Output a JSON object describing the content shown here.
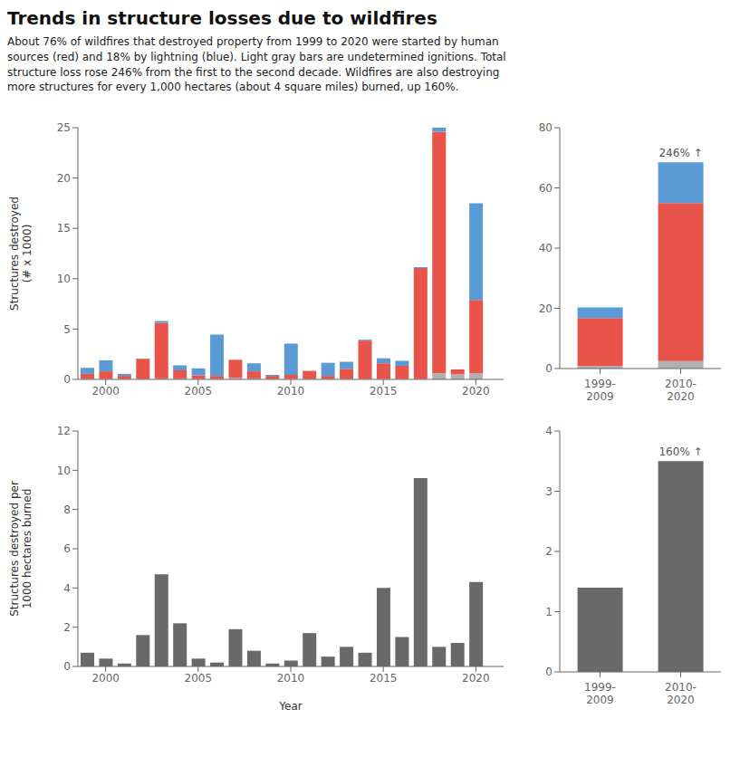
{
  "title": "Trends in structure losses due to wildfires",
  "subtitle": "About 76% of wildfires that destroyed property from 1999 to 2020 were started by human\nsources (red) and 18% by lightning (blue). Light gray bars are undetermined ignitions. Total\nstructure loss rose 246% from the first to the second decade. Wildfires are also destroying\nmore structures for every 1,000 hectares (about 4 square miles) burned, up 160%.",
  "chart_data": [
    {
      "type": "bar",
      "stacked": true,
      "grid": false,
      "x": [
        1999,
        2000,
        2001,
        2002,
        2003,
        2004,
        2005,
        2006,
        2007,
        2008,
        2009,
        2010,
        2011,
        2012,
        2013,
        2014,
        2015,
        2016,
        2017,
        2018,
        2019,
        2020
      ],
      "xlim": [
        1998.5,
        2021.5
      ],
      "xticks": [
        2000,
        2005,
        2010,
        2015,
        2020
      ],
      "ylim": [
        0,
        25
      ],
      "yticks": [
        0,
        5,
        10,
        15,
        20,
        25
      ],
      "y_label": "Structures destroyed\n(# x 1000)",
      "series": [
        {
          "color": "#b0b0b0",
          "values": [
            0.05,
            0.05,
            0.05,
            0.05,
            0.1,
            0.1,
            0.05,
            0.05,
            0.15,
            0.1,
            0.05,
            0.05,
            0.05,
            0.05,
            0.05,
            0.05,
            0.05,
            0.05,
            0.05,
            0.6,
            0.5,
            0.6
          ]
        },
        {
          "color": "#e8534a",
          "values": [
            0.5,
            0.75,
            0.3,
            2.0,
            5.5,
            0.8,
            0.35,
            0.3,
            1.8,
            0.7,
            0.3,
            0.4,
            0.8,
            0.3,
            1.0,
            3.8,
            1.55,
            1.3,
            11.0,
            24.0,
            0.5,
            7.3
          ]
        },
        {
          "color": "#5b9bd5",
          "values": [
            0.6,
            1.1,
            0.2,
            0.0,
            0.2,
            0.5,
            0.7,
            4.1,
            0.0,
            0.8,
            0.1,
            3.1,
            0.0,
            1.3,
            0.7,
            0.1,
            0.5,
            0.5,
            0.1,
            0.4,
            0.0,
            9.6
          ]
        }
      ]
    },
    {
      "type": "bar",
      "stacked": true,
      "grid": false,
      "categories": [
        "1999-\n2009",
        "2010-\n2020"
      ],
      "ylim": [
        0,
        80
      ],
      "yticks": [
        0,
        20,
        40,
        60,
        80
      ],
      "series": [
        {
          "color": "#b0b0b0",
          "values": [
            0.8,
            2.5
          ]
        },
        {
          "color": "#e8534a",
          "values": [
            16.0,
            52.5
          ]
        },
        {
          "color": "#5b9bd5",
          "values": [
            3.5,
            13.5
          ]
        }
      ],
      "annotations": [
        {
          "text": "246% ↑",
          "x": "2010-\n2020"
        }
      ]
    },
    {
      "type": "bar",
      "grid": false,
      "x": [
        1999,
        2000,
        2001,
        2002,
        2003,
        2004,
        2005,
        2006,
        2007,
        2008,
        2009,
        2010,
        2011,
        2012,
        2013,
        2014,
        2015,
        2016,
        2017,
        2018,
        2019,
        2020
      ],
      "xlim": [
        1998.5,
        2021.5
      ],
      "xticks": [
        2000,
        2005,
        2010,
        2015,
        2020
      ],
      "ylim": [
        0,
        12
      ],
      "yticks": [
        0,
        2,
        4,
        6,
        8,
        10,
        12
      ],
      "x_label": "Year",
      "y_label": "Structures destroyed per\n1000 hectares burned",
      "color": "#696969",
      "values": [
        0.7,
        0.4,
        0.15,
        1.6,
        4.7,
        2.2,
        0.4,
        0.2,
        1.9,
        0.8,
        0.15,
        0.3,
        1.7,
        0.5,
        1.0,
        0.7,
        4.0,
        1.5,
        9.6,
        1.0,
        1.2,
        4.3
      ]
    },
    {
      "type": "bar",
      "grid": false,
      "categories": [
        "1999-\n2009",
        "2010-\n2020"
      ],
      "ylim": [
        0,
        4
      ],
      "yticks": [
        0,
        1,
        2,
        3,
        4
      ],
      "color": "#696969",
      "values": [
        1.4,
        3.5
      ],
      "annotations": [
        {
          "text": "160% ↑",
          "x": "2010-\n2020"
        }
      ]
    }
  ]
}
